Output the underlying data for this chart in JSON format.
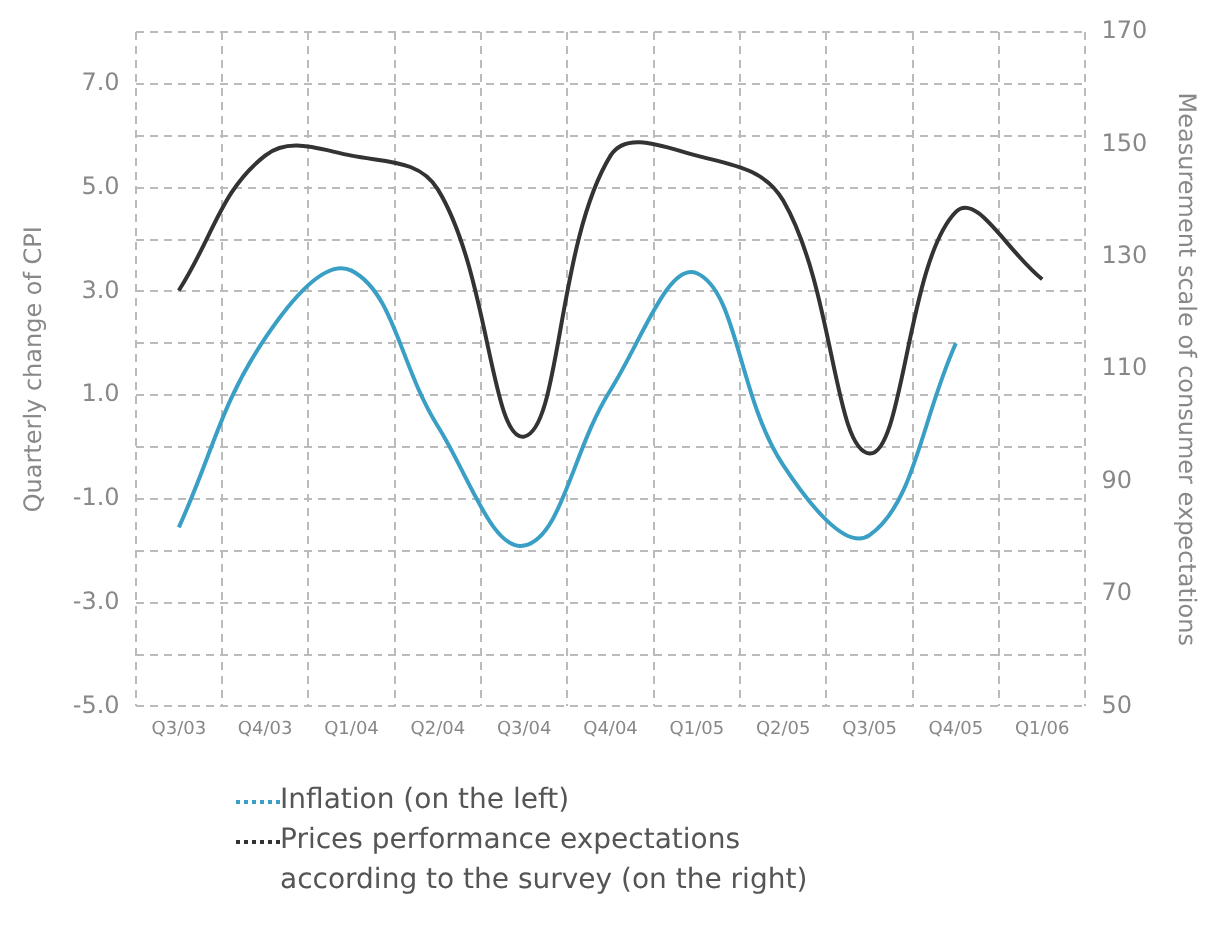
{
  "chart_data": {
    "type": "line",
    "categories": [
      "Q3/03",
      "Q4/03",
      "Q1/04",
      "Q2/04",
      "Q3/04",
      "Q4/04",
      "Q1/05",
      "Q2/05",
      "Q3/05",
      "Q4/05",
      "Q1/06"
    ],
    "series": [
      {
        "name": "Inflation (on the left)",
        "color": "#3a9fc4",
        "values": [
          -1.55,
          2.1,
          3.4,
          0.4,
          -1.9,
          1.1,
          3.35,
          -0.35,
          -1.7,
          2.0,
          null
        ]
      },
      {
        "name": "Prices performance expectations according to the survey (on the right)",
        "color": "#333333",
        "axis": "y2",
        "values": [
          124,
          148,
          148,
          142,
          98,
          148,
          148,
          140,
          95,
          138,
          126
        ]
      }
    ],
    "ylabel": "Quarterly change of CPI",
    "y2label": "Measurement scale of consumer expectations",
    "ylim": [
      -5,
      8
    ],
    "yticks": [
      {
        "value": -5,
        "label": "-5.0"
      },
      {
        "value": -4,
        "label": null
      },
      {
        "value": -3,
        "label": "-3.0"
      },
      {
        "value": -2,
        "label": null
      },
      {
        "value": -1,
        "label": "-1.0"
      },
      {
        "value": 0,
        "label": null
      },
      {
        "value": 1,
        "label": "1.0"
      },
      {
        "value": 2,
        "label": null
      },
      {
        "value": 3,
        "label": "3.0"
      },
      {
        "value": 4,
        "label": null
      },
      {
        "value": 5,
        "label": "5.0"
      },
      {
        "value": 6,
        "label": null
      },
      {
        "value": 7,
        "label": "7.0"
      },
      {
        "value": 8,
        "label": null
      }
    ],
    "y2lim": [
      50,
      170
    ],
    "y2ticks": [
      50,
      70,
      90,
      110,
      130,
      150,
      170
    ],
    "grid": true,
    "legend": "bottom",
    "marker": "none",
    "line_style": "solid"
  }
}
